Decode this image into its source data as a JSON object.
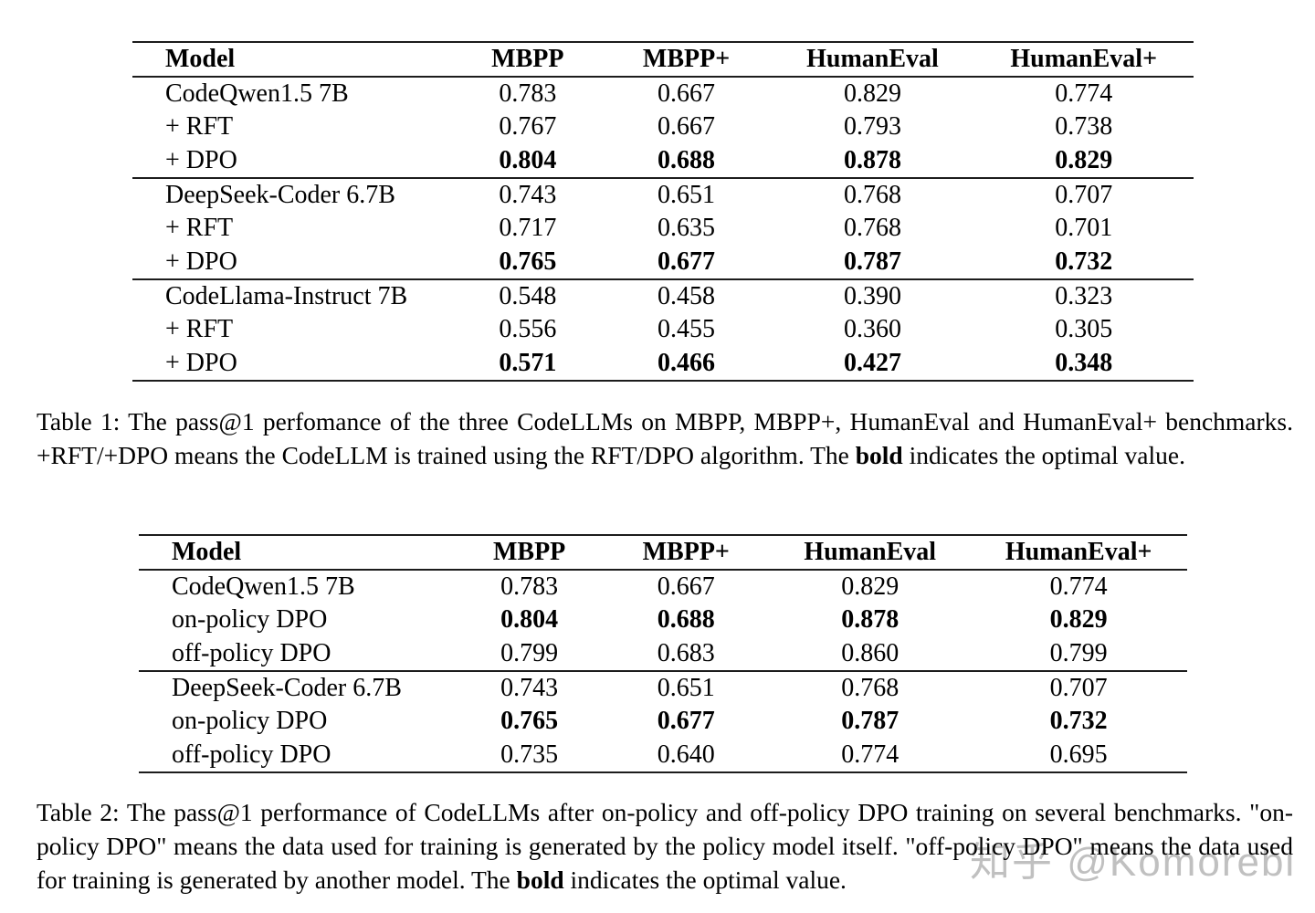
{
  "page": {
    "background": "#ffffff",
    "text_color": "#000000",
    "rule_color": "#1c1c1c",
    "watermark": {
      "text": "知乎 @Komorebi",
      "color": "#bdbdbd"
    }
  },
  "table1": {
    "columns": [
      "Model",
      "MBPP",
      "MBPP+",
      "HumanEval",
      "HumanEval+"
    ],
    "groups": [
      {
        "rows": [
          {
            "model": "CodeQwen1.5 7B",
            "values": [
              "0.783",
              "0.667",
              "0.829",
              "0.774"
            ],
            "bold_values": false
          },
          {
            "model": "+ RFT",
            "values": [
              "0.767",
              "0.667",
              "0.793",
              "0.738"
            ],
            "bold_values": false
          },
          {
            "model": "+ DPO",
            "values": [
              "0.804",
              "0.688",
              "0.878",
              "0.829"
            ],
            "bold_values": true
          }
        ]
      },
      {
        "rows": [
          {
            "model": "DeepSeek-Coder 6.7B",
            "values": [
              "0.743",
              "0.651",
              "0.768",
              "0.707"
            ],
            "bold_values": false
          },
          {
            "model": "+ RFT",
            "values": [
              "0.717",
              "0.635",
              "0.768",
              "0.701"
            ],
            "bold_values": false
          },
          {
            "model": "+ DPO",
            "values": [
              "0.765",
              "0.677",
              "0.787",
              "0.732"
            ],
            "bold_values": true
          }
        ]
      },
      {
        "rows": [
          {
            "model": "CodeLlama-Instruct 7B",
            "values": [
              "0.548",
              "0.458",
              "0.390",
              "0.323"
            ],
            "bold_values": false
          },
          {
            "model": "+ RFT",
            "values": [
              "0.556",
              "0.455",
              "0.360",
              "0.305"
            ],
            "bold_values": false
          },
          {
            "model": "+ DPO",
            "values": [
              "0.571",
              "0.466",
              "0.427",
              "0.348"
            ],
            "bold_values": true
          }
        ]
      }
    ],
    "caption": {
      "text_before_bold": "Table 1:  The pass@1 perfomance of the three CodeLLMs on MBPP, MBPP+, HumanEval and HumanEval+ benchmarks. +RFT/+DPO means the CodeLLM is trained using the RFT/DPO algorithm. The ",
      "bold_word": "bold",
      "text_after_bold": " indicates the optimal value."
    }
  },
  "table2": {
    "columns": [
      "Model",
      "MBPP",
      "MBPP+",
      "HumanEval",
      "HumanEval+"
    ],
    "groups": [
      {
        "rows": [
          {
            "model": "CodeQwen1.5 7B",
            "values": [
              "0.783",
              "0.667",
              "0.829",
              "0.774"
            ],
            "bold_values": false
          },
          {
            "model": "on-policy DPO",
            "values": [
              "0.804",
              "0.688",
              "0.878",
              "0.829"
            ],
            "bold_values": true
          },
          {
            "model": "off-policy DPO",
            "values": [
              "0.799",
              "0.683",
              "0.860",
              "0.799"
            ],
            "bold_values": false
          }
        ]
      },
      {
        "rows": [
          {
            "model": "DeepSeek-Coder 6.7B",
            "values": [
              "0.743",
              "0.651",
              "0.768",
              "0.707"
            ],
            "bold_values": false
          },
          {
            "model": "on-policy DPO",
            "values": [
              "0.765",
              "0.677",
              "0.787",
              "0.732"
            ],
            "bold_values": true
          },
          {
            "model": "off-policy DPO",
            "values": [
              "0.735",
              "0.640",
              "0.774",
              "0.695"
            ],
            "bold_values": false
          }
        ]
      }
    ],
    "caption": {
      "text_before_bold": "Table 2: The pass@1 performance of CodeLLMs after on-policy and off-policy DPO training on several benchmarks. \"on-policy DPO\" means the data used for training is generated by the policy model itself. \"off-policy DPO\" means the data used for training is generated by another model. The ",
      "bold_word": "bold",
      "text_after_bold": " indicates the optimal value."
    }
  }
}
